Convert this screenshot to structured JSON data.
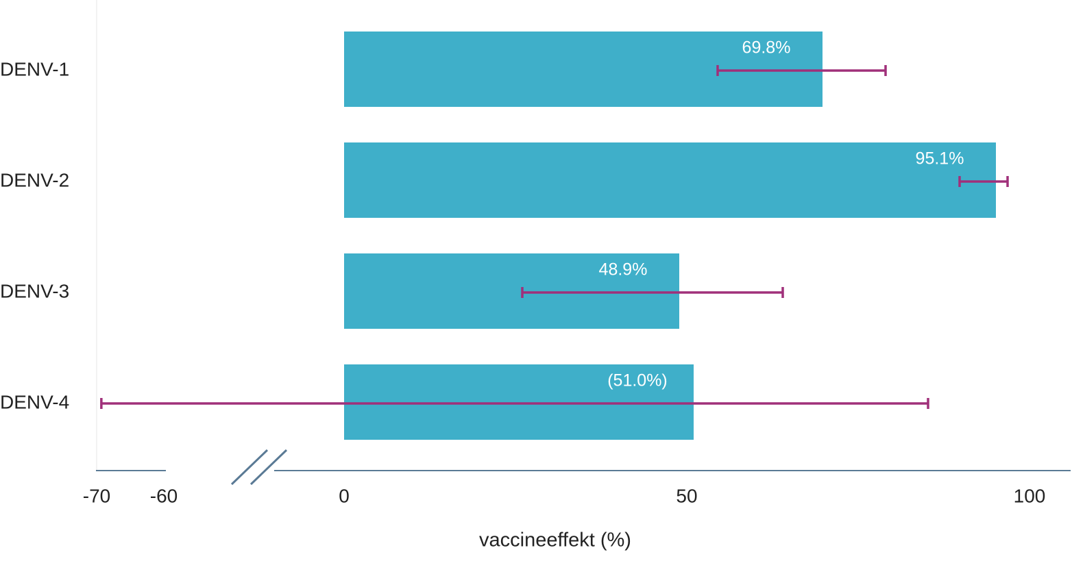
{
  "chart_data": {
    "type": "bar",
    "orientation": "horizontal",
    "categories": [
      "DENV-1",
      "DENV-2",
      "DENV-3",
      "DENV-4"
    ],
    "values": [
      69.8,
      95.1,
      48.9,
      51.0
    ],
    "value_labels": [
      "69.8%",
      "95.1%",
      "48.9%",
      "(51.0%)"
    ],
    "ci": [
      [
        54.5,
        79.0
      ],
      [
        89.8,
        96.8
      ],
      [
        26.0,
        64.0
      ],
      [
        -69.3,
        85.2
      ]
    ],
    "color": "#3fafc9",
    "error_color": "#a0307a",
    "xlim": [
      -70,
      100
    ],
    "xticks": [
      -70,
      -60,
      0,
      50,
      100
    ],
    "xlabel": "vaccineeffekt (%)"
  }
}
